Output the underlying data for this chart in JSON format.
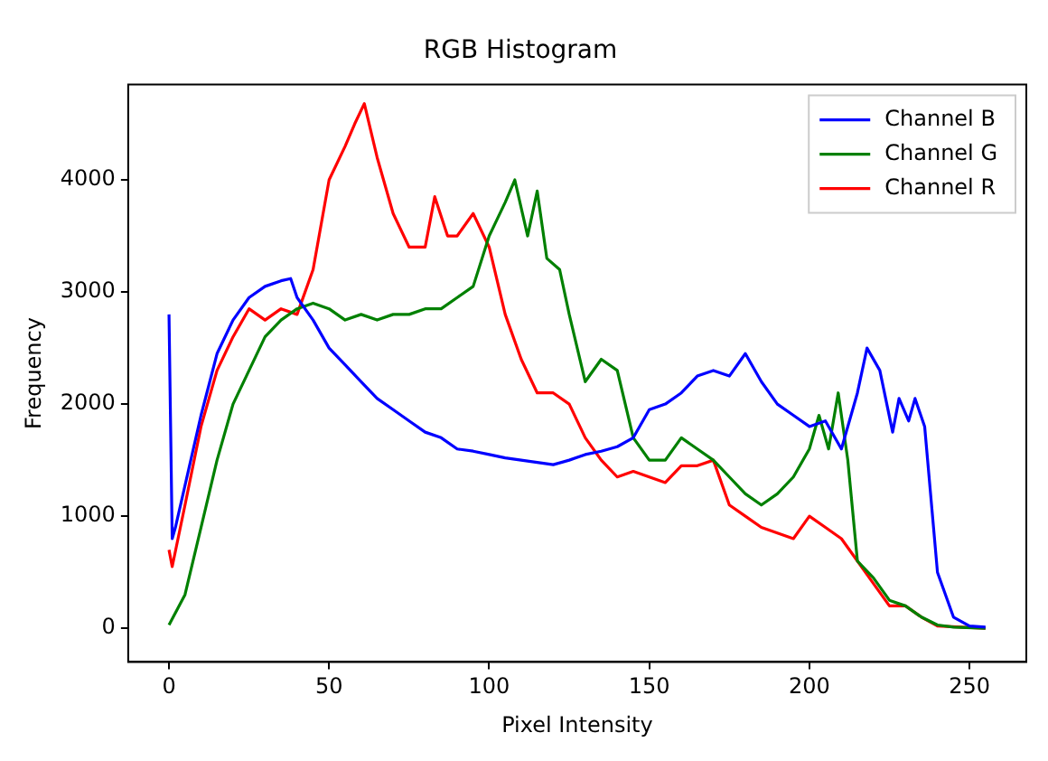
{
  "chart_data": {
    "type": "line",
    "title": "RGB Histogram",
    "xlabel": "Pixel Intensity",
    "ylabel": "Frequency",
    "xlim": [
      -12.75,
      267.75
    ],
    "ylim": [
      -300,
      4850
    ],
    "xticks": [
      0,
      50,
      100,
      150,
      200,
      250
    ],
    "yticks": [
      0,
      1000,
      2000,
      3000,
      4000
    ],
    "grid": false,
    "legend": "top right",
    "marker": "none",
    "line_style": "solid",
    "series": [
      {
        "name": "Channel B",
        "color": "#0000ff",
        "x": [
          0,
          1,
          2,
          10,
          15,
          20,
          25,
          30,
          35,
          38,
          40,
          45,
          50,
          55,
          60,
          65,
          70,
          75,
          80,
          85,
          90,
          95,
          100,
          105,
          110,
          115,
          120,
          125,
          130,
          135,
          140,
          145,
          150,
          155,
          160,
          165,
          170,
          175,
          180,
          185,
          190,
          195,
          200,
          205,
          210,
          215,
          218,
          222,
          226,
          228,
          231,
          233,
          236,
          240,
          245,
          250,
          255
        ],
        "values": [
          2800,
          800,
          900,
          1900,
          2450,
          2750,
          2950,
          3050,
          3100,
          3120,
          2950,
          2750,
          2500,
          2350,
          2200,
          2050,
          1950,
          1850,
          1750,
          1700,
          1600,
          1580,
          1550,
          1520,
          1500,
          1480,
          1460,
          1500,
          1550,
          1580,
          1620,
          1700,
          1950,
          2000,
          2100,
          2250,
          2300,
          2250,
          2450,
          2200,
          2000,
          1900,
          1800,
          1850,
          1600,
          2100,
          2500,
          2300,
          1750,
          2050,
          1850,
          2050,
          1800,
          500,
          100,
          20,
          10
        ]
      },
      {
        "name": "Channel G",
        "color": "#008000",
        "x": [
          0,
          5,
          10,
          15,
          20,
          25,
          30,
          35,
          40,
          45,
          50,
          55,
          60,
          65,
          70,
          75,
          80,
          85,
          90,
          95,
          100,
          105,
          108,
          112,
          115,
          118,
          122,
          125,
          130,
          135,
          140,
          145,
          150,
          155,
          160,
          165,
          170,
          175,
          180,
          185,
          190,
          195,
          200,
          203,
          206,
          209,
          212,
          215,
          220,
          225,
          230,
          235,
          240,
          245,
          255
        ],
        "values": [
          30,
          300,
          900,
          1500,
          2000,
          2300,
          2600,
          2750,
          2850,
          2900,
          2850,
          2750,
          2800,
          2750,
          2800,
          2800,
          2850,
          2850,
          2950,
          3050,
          3500,
          3800,
          4000,
          3500,
          3900,
          3300,
          3200,
          2800,
          2200,
          2400,
          2300,
          1700,
          1500,
          1500,
          1700,
          1600,
          1500,
          1350,
          1200,
          1100,
          1200,
          1350,
          1600,
          1900,
          1600,
          2100,
          1500,
          600,
          450,
          250,
          200,
          100,
          30,
          10,
          0
        ]
      },
      {
        "name": "Channel R",
        "color": "#ff0000",
        "x": [
          0,
          1,
          5,
          10,
          15,
          20,
          25,
          30,
          35,
          40,
          45,
          50,
          55,
          58,
          61,
          65,
          70,
          75,
          80,
          83,
          87,
          90,
          95,
          100,
          105,
          110,
          115,
          120,
          125,
          130,
          135,
          140,
          145,
          150,
          155,
          160,
          165,
          170,
          175,
          180,
          185,
          190,
          195,
          200,
          205,
          210,
          215,
          220,
          225,
          230,
          235,
          240,
          255
        ],
        "values": [
          700,
          550,
          1100,
          1800,
          2300,
          2600,
          2850,
          2750,
          2850,
          2800,
          3200,
          4000,
          4300,
          4500,
          4680,
          4200,
          3700,
          3400,
          3400,
          3850,
          3500,
          3500,
          3700,
          3400,
          2800,
          2400,
          2100,
          2100,
          2000,
          1700,
          1500,
          1350,
          1400,
          1350,
          1300,
          1450,
          1450,
          1500,
          1100,
          1000,
          900,
          850,
          800,
          1000,
          900,
          800,
          600,
          400,
          200,
          200,
          100,
          20,
          0
        ]
      }
    ]
  }
}
